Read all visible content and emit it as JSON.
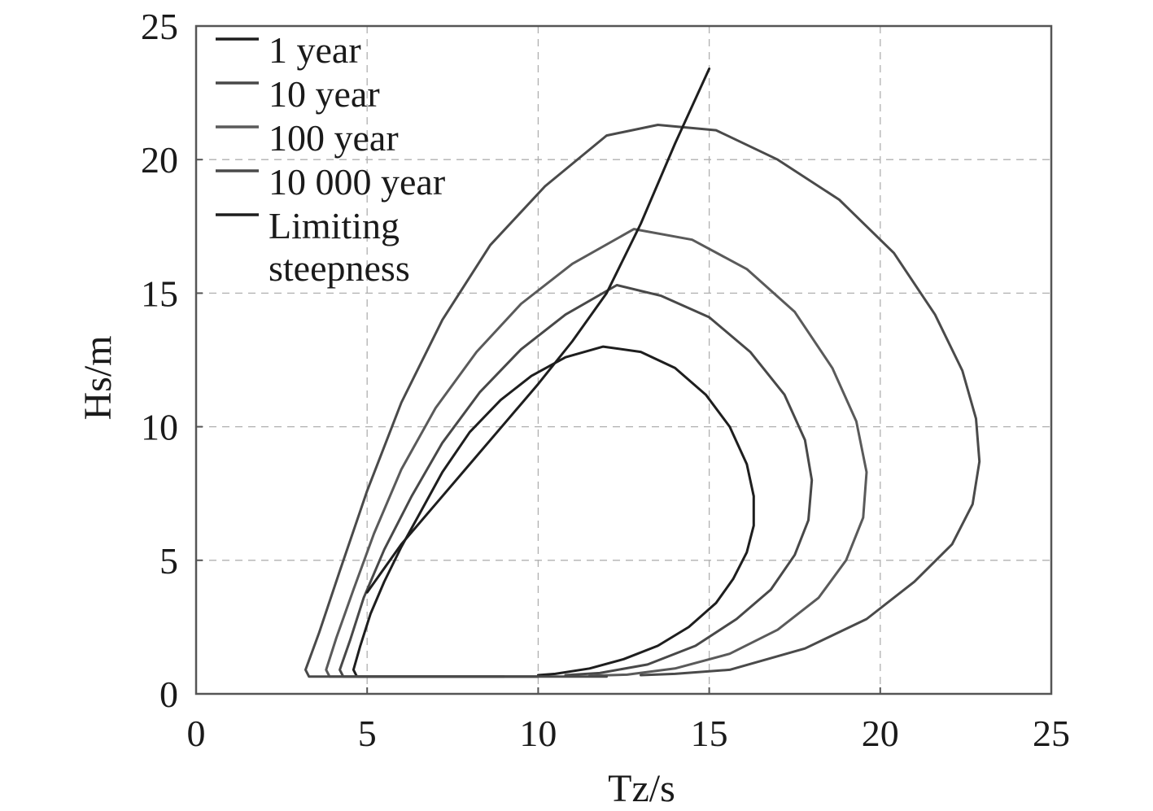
{
  "chart_data": {
    "type": "line",
    "title": "",
    "xlabel": "Tz/s",
    "ylabel": "Hs/m",
    "xlim": [
      0,
      25
    ],
    "ylim": [
      0,
      25
    ],
    "xticks": [
      "0",
      "5",
      "10",
      "15",
      "20",
      "25"
    ],
    "yticks": [
      "0",
      "5",
      "10",
      "15",
      "20",
      "25"
    ],
    "grid": true,
    "legend_position": "top-left",
    "series": [
      {
        "name": "1 year",
        "color": "#1e1e1e",
        "points": [
          [
            9.0,
            0.65
          ],
          [
            6.0,
            0.65
          ],
          [
            4.7,
            0.65
          ],
          [
            4.6,
            0.9
          ],
          [
            4.8,
            1.8
          ],
          [
            5.1,
            3.0
          ],
          [
            5.5,
            4.2
          ],
          [
            6.0,
            5.5
          ],
          [
            6.6,
            6.9
          ],
          [
            7.2,
            8.3
          ],
          [
            8.0,
            9.8
          ],
          [
            8.9,
            11.0
          ],
          [
            9.8,
            11.9
          ],
          [
            10.8,
            12.6
          ],
          [
            11.9,
            13.0
          ],
          [
            13.0,
            12.8
          ],
          [
            14.0,
            12.2
          ],
          [
            14.9,
            11.2
          ],
          [
            15.6,
            10.0
          ],
          [
            16.1,
            8.6
          ],
          [
            16.3,
            7.4
          ],
          [
            16.3,
            6.3
          ],
          [
            16.1,
            5.3
          ],
          [
            15.7,
            4.3
          ],
          [
            15.2,
            3.4
          ],
          [
            14.4,
            2.5
          ],
          [
            13.5,
            1.8
          ],
          [
            12.5,
            1.3
          ],
          [
            11.5,
            0.95
          ],
          [
            10.5,
            0.75
          ],
          [
            10.0,
            0.7
          ]
        ]
      },
      {
        "name": "10 year",
        "color": "#484848",
        "points": [
          [
            10.0,
            0.65
          ],
          [
            6.0,
            0.65
          ],
          [
            4.3,
            0.65
          ],
          [
            4.2,
            0.9
          ],
          [
            4.5,
            2.0
          ],
          [
            4.9,
            3.6
          ],
          [
            5.5,
            5.4
          ],
          [
            6.3,
            7.4
          ],
          [
            7.2,
            9.4
          ],
          [
            8.3,
            11.3
          ],
          [
            9.5,
            12.9
          ],
          [
            10.8,
            14.2
          ],
          [
            12.3,
            15.3
          ],
          [
            13.6,
            14.9
          ],
          [
            15.0,
            14.1
          ],
          [
            16.2,
            12.8
          ],
          [
            17.2,
            11.2
          ],
          [
            17.8,
            9.5
          ],
          [
            18.0,
            8.0
          ],
          [
            17.9,
            6.5
          ],
          [
            17.5,
            5.2
          ],
          [
            16.8,
            3.9
          ],
          [
            15.8,
            2.8
          ],
          [
            14.6,
            1.8
          ],
          [
            13.2,
            1.1
          ],
          [
            11.8,
            0.78
          ],
          [
            10.8,
            0.7
          ]
        ]
      },
      {
        "name": "100 year",
        "color": "#5a5a5a",
        "points": [
          [
            10.0,
            0.65
          ],
          [
            6.0,
            0.65
          ],
          [
            3.9,
            0.65
          ],
          [
            3.8,
            0.9
          ],
          [
            4.1,
            2.1
          ],
          [
            4.6,
            3.9
          ],
          [
            5.2,
            6.0
          ],
          [
            6.0,
            8.4
          ],
          [
            7.0,
            10.7
          ],
          [
            8.2,
            12.8
          ],
          [
            9.5,
            14.6
          ],
          [
            11.0,
            16.1
          ],
          [
            12.8,
            17.4
          ],
          [
            14.5,
            17.0
          ],
          [
            16.1,
            15.9
          ],
          [
            17.5,
            14.3
          ],
          [
            18.6,
            12.2
          ],
          [
            19.3,
            10.2
          ],
          [
            19.6,
            8.3
          ],
          [
            19.5,
            6.6
          ],
          [
            19.0,
            5.0
          ],
          [
            18.2,
            3.6
          ],
          [
            17.0,
            2.4
          ],
          [
            15.6,
            1.5
          ],
          [
            14.0,
            0.95
          ],
          [
            12.6,
            0.72
          ],
          [
            11.5,
            0.68
          ]
        ]
      },
      {
        "name": "10 000 year",
        "color": "#4a4a4a",
        "points": [
          [
            12.0,
            0.65
          ],
          [
            6.0,
            0.65
          ],
          [
            3.3,
            0.65
          ],
          [
            3.2,
            0.9
          ],
          [
            3.6,
            2.3
          ],
          [
            4.2,
            4.6
          ],
          [
            5.0,
            7.6
          ],
          [
            6.0,
            10.9
          ],
          [
            7.2,
            14.0
          ],
          [
            8.6,
            16.8
          ],
          [
            10.2,
            19.0
          ],
          [
            12.0,
            20.9
          ],
          [
            13.5,
            21.3
          ],
          [
            15.2,
            21.1
          ],
          [
            17.0,
            20.0
          ],
          [
            18.8,
            18.5
          ],
          [
            20.4,
            16.5
          ],
          [
            21.6,
            14.2
          ],
          [
            22.4,
            12.1
          ],
          [
            22.8,
            10.3
          ],
          [
            22.9,
            8.7
          ],
          [
            22.7,
            7.1
          ],
          [
            22.1,
            5.6
          ],
          [
            21.0,
            4.2
          ],
          [
            19.6,
            2.8
          ],
          [
            17.8,
            1.7
          ],
          [
            15.6,
            0.9
          ],
          [
            14.0,
            0.75
          ],
          [
            13.0,
            0.7
          ]
        ]
      },
      {
        "name": "Limiting steepness",
        "color": "#1e1e1e",
        "points": [
          [
            5.0,
            3.8
          ],
          [
            6.0,
            5.6
          ],
          [
            7.0,
            7.1
          ],
          [
            8.0,
            8.6
          ],
          [
            9.0,
            10.1
          ],
          [
            10.0,
            11.6
          ],
          [
            11.0,
            13.2
          ],
          [
            12.0,
            15.0
          ],
          [
            13.0,
            17.6
          ],
          [
            14.0,
            20.6
          ],
          [
            15.0,
            23.4
          ]
        ]
      }
    ]
  }
}
